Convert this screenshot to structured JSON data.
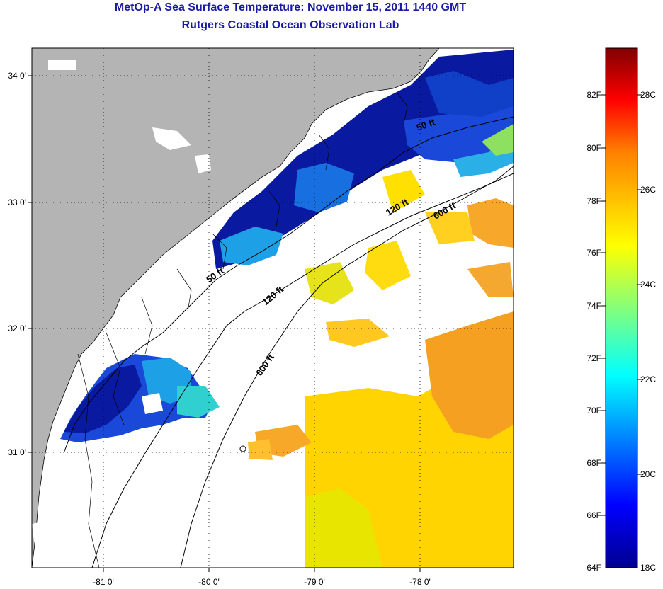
{
  "title": "MetOp-A Sea Surface Temperature:  November 15, 2011 1440 GMT",
  "subtitle": "Rutgers Coastal Ocean Observation Lab",
  "map": {
    "lon_labels": [
      "-81 0'",
      "-80 0'",
      "-79 0'",
      "-78 0'"
    ],
    "lat_labels": [
      "34 0'",
      "33 0'",
      "32 0'",
      "31 0'"
    ],
    "colors": {
      "land": "#b4b4b4",
      "cloud": "#ffffff",
      "coast": "#000000"
    }
  },
  "contours": [
    {
      "label": "50 ft"
    },
    {
      "label": "120 ft"
    },
    {
      "label": "600 ft"
    },
    {
      "label": "50 ft"
    },
    {
      "label": "120 ft"
    },
    {
      "label": "600 ft"
    }
  ],
  "colorbar": {
    "f_labels": [
      "82F",
      "80F",
      "78F",
      "76F",
      "74F",
      "72F",
      "70F",
      "68F",
      "66F",
      "64F"
    ],
    "c_labels": [
      "28C",
      "26C",
      "24C",
      "22C",
      "20C",
      "18C"
    ],
    "colors": [
      "#00008f",
      "#0000ff",
      "#00ffff",
      "#ffff00",
      "#ff8000",
      "#ff0000",
      "#800000"
    ]
  }
}
